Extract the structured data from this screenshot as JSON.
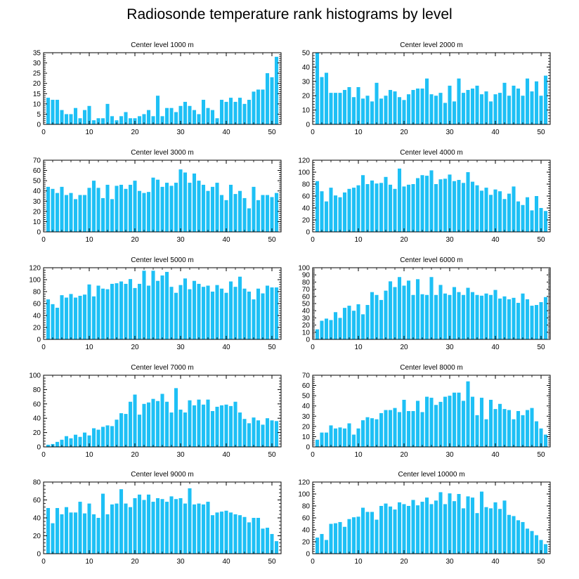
{
  "figure_title": "Radiosonde temperature rank histograms by level",
  "bar_color": "#1ec0f5",
  "chart_data": [
    {
      "type": "bar",
      "title": "Center level 1000 m",
      "x": [
        1,
        2,
        3,
        4,
        5,
        6,
        7,
        8,
        9,
        10,
        11,
        12,
        13,
        14,
        15,
        16,
        17,
        18,
        19,
        20,
        21,
        22,
        23,
        24,
        25,
        26,
        27,
        28,
        29,
        30,
        31,
        32,
        33,
        34,
        35,
        36,
        37,
        38,
        39,
        40,
        41,
        42,
        43,
        44,
        45,
        46,
        47,
        48,
        49,
        50,
        51
      ],
      "values": [
        13,
        12,
        12,
        7,
        5,
        5,
        8,
        3,
        7,
        9,
        2,
        3,
        3,
        10,
        4,
        2,
        4,
        6,
        3,
        3,
        4,
        5,
        7,
        4,
        14,
        4,
        8,
        8,
        6,
        9,
        11,
        9,
        7,
        5,
        12,
        8,
        7,
        3,
        12,
        11,
        13,
        11,
        13,
        10,
        12,
        16,
        17,
        17,
        25,
        23,
        33
      ],
      "xlim": [
        0,
        52
      ],
      "ylim": [
        0,
        35
      ],
      "xticks": [
        0,
        10,
        20,
        30,
        40,
        50
      ],
      "yticks": [
        0,
        5,
        10,
        15,
        20,
        25,
        30,
        35
      ]
    },
    {
      "type": "bar",
      "title": "Center level 2000 m",
      "x": [
        1,
        2,
        3,
        4,
        5,
        6,
        7,
        8,
        9,
        10,
        11,
        12,
        13,
        14,
        15,
        16,
        17,
        18,
        19,
        20,
        21,
        22,
        23,
        24,
        25,
        26,
        27,
        28,
        29,
        30,
        31,
        32,
        33,
        34,
        35,
        36,
        37,
        38,
        39,
        40,
        41,
        42,
        43,
        44,
        45,
        46,
        47,
        48,
        49,
        50,
        51
      ],
      "values": [
        50,
        33,
        36,
        22,
        22,
        22,
        24,
        26,
        19,
        26,
        18,
        20,
        16,
        29,
        18,
        20,
        24,
        23,
        19,
        17,
        21,
        24,
        25,
        25,
        32,
        21,
        20,
        22,
        15,
        27,
        16,
        32,
        22,
        24,
        25,
        27,
        21,
        23,
        16,
        21,
        22,
        29,
        20,
        27,
        25,
        20,
        32,
        23,
        30,
        20,
        34
      ],
      "xlim": [
        0,
        52
      ],
      "ylim": [
        0,
        50
      ],
      "xticks": [
        0,
        10,
        20,
        30,
        40,
        50
      ],
      "yticks": [
        0,
        10,
        20,
        30,
        40,
        50
      ]
    },
    {
      "type": "bar",
      "title": "Center level 3000 m",
      "x": [
        1,
        2,
        3,
        4,
        5,
        6,
        7,
        8,
        9,
        10,
        11,
        12,
        13,
        14,
        15,
        16,
        17,
        18,
        19,
        20,
        21,
        22,
        23,
        24,
        25,
        26,
        27,
        28,
        29,
        30,
        31,
        32,
        33,
        34,
        35,
        36,
        37,
        38,
        39,
        40,
        41,
        42,
        43,
        44,
        45,
        46,
        47,
        48,
        49,
        50,
        51
      ],
      "values": [
        44,
        42,
        38,
        44,
        36,
        38,
        32,
        36,
        36,
        43,
        50,
        43,
        33,
        46,
        32,
        45,
        46,
        42,
        46,
        50,
        40,
        38,
        39,
        53,
        51,
        44,
        48,
        45,
        48,
        61,
        58,
        48,
        57,
        50,
        46,
        40,
        44,
        48,
        36,
        31,
        46,
        37,
        40,
        33,
        23,
        44,
        31,
        36,
        36,
        34,
        38
      ],
      "xlim": [
        0,
        52
      ],
      "ylim": [
        0,
        70
      ],
      "xticks": [
        0,
        10,
        20,
        30,
        40,
        50
      ],
      "yticks": [
        0,
        10,
        20,
        30,
        40,
        50,
        60,
        70
      ]
    },
    {
      "type": "bar",
      "title": "Center level 4000 m",
      "x": [
        1,
        2,
        3,
        4,
        5,
        6,
        7,
        8,
        9,
        10,
        11,
        12,
        13,
        14,
        15,
        16,
        17,
        18,
        19,
        20,
        21,
        22,
        23,
        24,
        25,
        26,
        27,
        28,
        29,
        30,
        31,
        32,
        33,
        34,
        35,
        36,
        37,
        38,
        39,
        40,
        41,
        42,
        43,
        44,
        45,
        46,
        47,
        48,
        49,
        50,
        51
      ],
      "values": [
        85,
        68,
        51,
        74,
        61,
        58,
        66,
        72,
        74,
        78,
        95,
        80,
        86,
        81,
        82,
        92,
        79,
        72,
        106,
        76,
        79,
        80,
        90,
        95,
        94,
        103,
        80,
        88,
        89,
        96,
        85,
        87,
        82,
        100,
        84,
        78,
        69,
        74,
        62,
        71,
        68,
        55,
        64,
        76,
        51,
        45,
        58,
        36,
        60,
        40,
        35
      ],
      "xlim": [
        0,
        52
      ],
      "ylim": [
        0,
        120
      ],
      "xticks": [
        0,
        10,
        20,
        30,
        40,
        50
      ],
      "yticks": [
        0,
        20,
        40,
        60,
        80,
        100,
        120
      ]
    },
    {
      "type": "bar",
      "title": "Center level 5000 m",
      "x": [
        1,
        2,
        3,
        4,
        5,
        6,
        7,
        8,
        9,
        10,
        11,
        12,
        13,
        14,
        15,
        16,
        17,
        18,
        19,
        20,
        21,
        22,
        23,
        24,
        25,
        26,
        27,
        28,
        29,
        30,
        31,
        32,
        33,
        34,
        35,
        36,
        37,
        38,
        39,
        40,
        41,
        42,
        43,
        44,
        45,
        46,
        47,
        48,
        49,
        50,
        51
      ],
      "values": [
        67,
        59,
        53,
        74,
        70,
        76,
        70,
        73,
        75,
        92,
        72,
        90,
        85,
        84,
        93,
        94,
        97,
        93,
        101,
        86,
        93,
        115,
        90,
        115,
        98,
        107,
        113,
        88,
        78,
        91,
        102,
        84,
        98,
        93,
        88,
        90,
        80,
        91,
        85,
        78,
        97,
        88,
        105,
        85,
        80,
        67,
        85,
        77,
        90,
        87,
        87
      ],
      "xlim": [
        0,
        52
      ],
      "ylim": [
        0,
        120
      ],
      "xticks": [
        0,
        10,
        20,
        30,
        40,
        50
      ],
      "yticks": [
        0,
        20,
        40,
        60,
        80,
        100,
        120
      ]
    },
    {
      "type": "bar",
      "title": "Center level 6000 m",
      "x": [
        1,
        2,
        3,
        4,
        5,
        6,
        7,
        8,
        9,
        10,
        11,
        12,
        13,
        14,
        15,
        16,
        17,
        18,
        19,
        20,
        21,
        22,
        23,
        24,
        25,
        26,
        27,
        28,
        29,
        30,
        31,
        32,
        33,
        34,
        35,
        36,
        37,
        38,
        39,
        40,
        41,
        42,
        43,
        44,
        45,
        46,
        47,
        48,
        49,
        50,
        51
      ],
      "values": [
        14,
        26,
        29,
        27,
        38,
        30,
        44,
        47,
        40,
        49,
        35,
        48,
        66,
        62,
        55,
        68,
        81,
        73,
        87,
        75,
        82,
        62,
        84,
        63,
        62,
        87,
        62,
        76,
        64,
        62,
        73,
        66,
        62,
        72,
        66,
        62,
        61,
        64,
        62,
        69,
        57,
        60,
        56,
        58,
        51,
        64,
        56,
        47,
        48,
        52,
        59
      ],
      "xlim": [
        0,
        52
      ],
      "ylim": [
        0,
        100
      ],
      "xticks": [
        0,
        10,
        20,
        30,
        40,
        50
      ],
      "yticks": [
        0,
        10,
        20,
        30,
        40,
        50,
        60,
        70,
        80,
        90,
        100
      ]
    },
    {
      "type": "bar",
      "title": "Center level 7000 m",
      "x": [
        1,
        2,
        3,
        4,
        5,
        6,
        7,
        8,
        9,
        10,
        11,
        12,
        13,
        14,
        15,
        16,
        17,
        18,
        19,
        20,
        21,
        22,
        23,
        24,
        25,
        26,
        27,
        28,
        29,
        30,
        31,
        32,
        33,
        34,
        35,
        36,
        37,
        38,
        39,
        40,
        41,
        42,
        43,
        44,
        45,
        46,
        47,
        48,
        49,
        50,
        51
      ],
      "values": [
        3,
        4,
        7,
        10,
        15,
        12,
        17,
        14,
        20,
        16,
        26,
        24,
        28,
        30,
        29,
        38,
        47,
        46,
        63,
        73,
        45,
        60,
        62,
        67,
        64,
        74,
        63,
        48,
        82,
        52,
        48,
        65,
        58,
        66,
        59,
        66,
        50,
        56,
        58,
        59,
        57,
        63,
        48,
        39,
        33,
        41,
        37,
        31,
        40,
        37,
        36
      ],
      "xlim": [
        0,
        52
      ],
      "ylim": [
        0,
        100
      ],
      "xticks": [
        0,
        10,
        20,
        30,
        40,
        50
      ],
      "yticks": [
        0,
        20,
        40,
        60,
        80,
        100
      ]
    },
    {
      "type": "bar",
      "title": "Center level 8000 m",
      "x": [
        1,
        2,
        3,
        4,
        5,
        6,
        7,
        8,
        9,
        10,
        11,
        12,
        13,
        14,
        15,
        16,
        17,
        18,
        19,
        20,
        21,
        22,
        23,
        24,
        25,
        26,
        27,
        28,
        29,
        30,
        31,
        32,
        33,
        34,
        35,
        36,
        37,
        38,
        39,
        40,
        41,
        42,
        43,
        44,
        45,
        46,
        47,
        48,
        49,
        50,
        51
      ],
      "values": [
        7,
        14,
        14,
        21,
        18,
        19,
        18,
        23,
        12,
        18,
        26,
        29,
        28,
        27,
        33,
        36,
        36,
        38,
        34,
        46,
        35,
        35,
        45,
        34,
        49,
        48,
        41,
        44,
        49,
        50,
        53,
        53,
        45,
        64,
        49,
        31,
        48,
        27,
        46,
        37,
        42,
        37,
        36,
        27,
        35,
        31,
        36,
        38,
        25,
        18,
        12
      ],
      "xlim": [
        0,
        52
      ],
      "ylim": [
        0,
        70
      ],
      "xticks": [
        0,
        10,
        20,
        30,
        40,
        50
      ],
      "yticks": [
        0,
        10,
        20,
        30,
        40,
        50,
        60,
        70
      ]
    },
    {
      "type": "bar",
      "title": "Center level 9000 m",
      "x": [
        1,
        2,
        3,
        4,
        5,
        6,
        7,
        8,
        9,
        10,
        11,
        12,
        13,
        14,
        15,
        16,
        17,
        18,
        19,
        20,
        21,
        22,
        23,
        24,
        25,
        26,
        27,
        28,
        29,
        30,
        31,
        32,
        33,
        34,
        35,
        36,
        37,
        38,
        39,
        40,
        41,
        42,
        43,
        44,
        45,
        46,
        47,
        48,
        49,
        50,
        51
      ],
      "values": [
        51,
        34,
        51,
        44,
        52,
        46,
        46,
        58,
        45,
        56,
        44,
        40,
        67,
        44,
        55,
        56,
        72,
        56,
        52,
        62,
        66,
        60,
        66,
        58,
        62,
        61,
        58,
        64,
        61,
        62,
        56,
        73,
        55,
        56,
        55,
        58,
        43,
        46,
        47,
        48,
        46,
        44,
        43,
        41,
        35,
        40,
        40,
        28,
        29,
        22,
        14
      ],
      "xlim": [
        0,
        52
      ],
      "ylim": [
        0,
        80
      ],
      "xticks": [
        0,
        10,
        20,
        30,
        40,
        50
      ],
      "yticks": [
        0,
        20,
        40,
        60,
        80
      ]
    },
    {
      "type": "bar",
      "title": "Center level 10000 m",
      "x": [
        1,
        2,
        3,
        4,
        5,
        6,
        7,
        8,
        9,
        10,
        11,
        12,
        13,
        14,
        15,
        16,
        17,
        18,
        19,
        20,
        21,
        22,
        23,
        24,
        25,
        26,
        27,
        28,
        29,
        30,
        31,
        32,
        33,
        34,
        35,
        36,
        37,
        38,
        39,
        40,
        41,
        42,
        43,
        44,
        45,
        46,
        47,
        48,
        49,
        50,
        51
      ],
      "values": [
        27,
        33,
        23,
        50,
        51,
        53,
        45,
        58,
        61,
        62,
        77,
        70,
        70,
        57,
        80,
        84,
        79,
        74,
        86,
        83,
        80,
        90,
        81,
        87,
        94,
        83,
        89,
        103,
        83,
        101,
        88,
        100,
        76,
        96,
        94,
        68,
        104,
        78,
        76,
        86,
        75,
        89,
        65,
        63,
        56,
        53,
        42,
        38,
        31,
        23,
        16
      ],
      "xlim": [
        0,
        52
      ],
      "ylim": [
        0,
        120
      ],
      "xticks": [
        0,
        10,
        20,
        30,
        40,
        50
      ],
      "yticks": [
        0,
        20,
        40,
        60,
        80,
        100,
        120
      ]
    }
  ]
}
